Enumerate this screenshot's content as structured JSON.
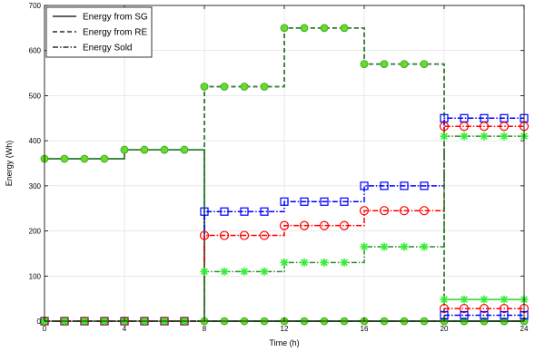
{
  "chart_data": {
    "type": "line",
    "title": "",
    "xlabel": "Time (h)",
    "ylabel": "Energy (Wh)",
    "xlim": [
      0,
      24
    ],
    "ylim": [
      0,
      700
    ],
    "xticks": [
      0,
      4,
      8,
      12,
      16,
      20,
      24
    ],
    "yticks": [
      0,
      100,
      200,
      300,
      400,
      500,
      600,
      700
    ],
    "grid": true,
    "legend": {
      "placement": "top-left",
      "entries": [
        "Energy from SG",
        "Energy from RE",
        "Energy Sold"
      ]
    },
    "series": [
      {
        "name": "Energy from SG",
        "style": "solid",
        "color": "#000000",
        "x": [
          0,
          1,
          2,
          3,
          4,
          5,
          6,
          7,
          8,
          9,
          10,
          11,
          12,
          13,
          14,
          15,
          16,
          17,
          18,
          19,
          20,
          21,
          22,
          23,
          24
        ],
        "y": [
          360,
          360,
          360,
          360,
          380,
          380,
          380,
          380,
          0,
          0,
          0,
          0,
          0,
          0,
          0,
          0,
          0,
          0,
          0,
          0,
          0,
          0,
          0,
          0,
          0
        ]
      },
      {
        "name": "Energy from RE",
        "style": "dashed",
        "color": "#000000",
        "x": [
          0,
          1,
          2,
          3,
          4,
          5,
          6,
          7,
          8,
          9,
          10,
          11,
          12,
          13,
          14,
          15,
          16,
          17,
          18,
          19,
          20,
          21,
          22,
          23,
          24
        ],
        "y": [
          0,
          0,
          0,
          0,
          0,
          0,
          0,
          0,
          520,
          520,
          520,
          520,
          650,
          650,
          650,
          650,
          570,
          570,
          570,
          570,
          0,
          0,
          0,
          0,
          0
        ]
      },
      {
        "name": "Energy Sold",
        "style": "dashdot",
        "color": "#000000",
        "x": [
          0,
          1,
          2,
          3,
          4,
          5,
          6,
          7,
          8,
          9,
          10,
          11,
          12,
          13,
          14,
          15,
          16,
          17,
          18,
          19,
          20,
          21,
          22,
          23,
          24
        ],
        "y": [
          0,
          0,
          0,
          0,
          0,
          0,
          0,
          0,
          0,
          0,
          0,
          0,
          0,
          0,
          0,
          0,
          0,
          0,
          0,
          0,
          0,
          0,
          0,
          0,
          0
        ]
      },
      {
        "style": "dashed",
        "color": "#2d8a2d",
        "marker": "circle-filled",
        "markerColor": "#66dd22",
        "x": [
          0,
          1,
          2,
          3,
          4,
          5,
          6,
          7,
          8,
          9,
          10,
          11,
          12,
          13,
          14,
          15,
          16,
          17,
          18,
          19,
          20,
          21,
          22,
          23,
          24
        ],
        "y": [
          0,
          0,
          0,
          0,
          0,
          0,
          0,
          0,
          520,
          520,
          520,
          520,
          650,
          650,
          650,
          650,
          570,
          570,
          570,
          570,
          0,
          0,
          0,
          0,
          0
        ]
      },
      {
        "style": "solid",
        "color": "#2d8a2d",
        "marker": "circle-filled",
        "markerColor": "#66dd22",
        "x": [
          0,
          1,
          2,
          3,
          4,
          5,
          6,
          7,
          8,
          9,
          10,
          11,
          12,
          13,
          14,
          15,
          16,
          17,
          18,
          19,
          20,
          21,
          22,
          23,
          24
        ],
        "y": [
          360,
          360,
          360,
          360,
          380,
          380,
          380,
          380,
          0,
          0,
          0,
          0,
          0,
          0,
          0,
          0,
          0,
          0,
          0,
          0,
          0,
          0,
          0,
          0,
          0
        ]
      },
      {
        "style": "dashdot",
        "color": "#0000ff",
        "marker": "square",
        "markerColor": "#0000ff",
        "x": [
          0,
          1,
          2,
          3,
          4,
          5,
          6,
          7,
          8,
          9,
          10,
          11,
          12,
          13,
          14,
          15,
          16,
          17,
          18,
          19,
          20,
          21,
          22,
          23,
          24
        ],
        "y": [
          0,
          0,
          0,
          0,
          0,
          0,
          0,
          0,
          243,
          243,
          243,
          243,
          265,
          265,
          265,
          265,
          300,
          300,
          300,
          300,
          450,
          450,
          450,
          450,
          450
        ]
      },
      {
        "style": "dashdot",
        "color": "#ff0000",
        "marker": "circle",
        "markerColor": "#ff0000",
        "x": [
          0,
          1,
          2,
          3,
          4,
          5,
          6,
          7,
          8,
          9,
          10,
          11,
          12,
          13,
          14,
          15,
          16,
          17,
          18,
          19,
          20,
          21,
          22,
          23,
          24
        ],
        "y": [
          0,
          0,
          0,
          0,
          0,
          0,
          0,
          0,
          190,
          190,
          190,
          190,
          212,
          212,
          212,
          212,
          245,
          245,
          245,
          245,
          432,
          432,
          432,
          432,
          432
        ]
      },
      {
        "style": "dashdot",
        "color": "#2d8a2d",
        "marker": "star",
        "markerColor": "#33ee33",
        "x": [
          0,
          1,
          2,
          3,
          4,
          5,
          6,
          7,
          8,
          9,
          10,
          11,
          12,
          13,
          14,
          15,
          16,
          17,
          18,
          19,
          20,
          21,
          22,
          23,
          24
        ],
        "y": [
          0,
          0,
          0,
          0,
          0,
          0,
          0,
          0,
          110,
          110,
          110,
          110,
          130,
          130,
          130,
          130,
          165,
          165,
          165,
          165,
          410,
          410,
          410,
          410,
          410
        ]
      },
      {
        "style": "solid",
        "color": "#2ecc2e",
        "marker": "star",
        "markerColor": "#33ee33",
        "x": [
          20,
          21,
          22,
          23,
          24
        ],
        "y": [
          48,
          48,
          48,
          48,
          48
        ]
      },
      {
        "style": "dashdot",
        "color": "#ff0000",
        "marker": "circle",
        "markerColor": "#ff0000",
        "x": [
          20,
          21,
          22,
          23,
          24
        ],
        "y": [
          28,
          28,
          28,
          28,
          28
        ]
      },
      {
        "style": "dashdot",
        "color": "#0000ff",
        "marker": "square",
        "markerColor": "#0000ff",
        "x": [
          20,
          21,
          22,
          23,
          24
        ],
        "y": [
          13,
          13,
          13,
          13,
          13
        ]
      }
    ]
  }
}
